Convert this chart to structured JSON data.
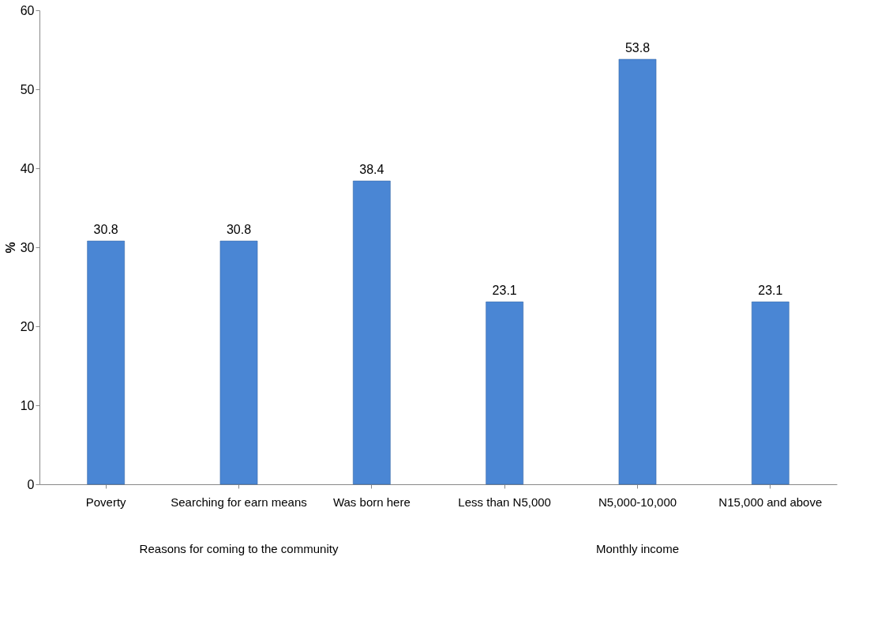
{
  "chart_data": {
    "type": "bar",
    "ylabel": "%",
    "categories": [
      "Poverty",
      "Searching for earn means",
      "Was born here",
      "Less than N5,000",
      "N5,000-10,000",
      "N15,000 and above"
    ],
    "values": [
      30.8,
      30.8,
      38.4,
      23.1,
      53.8,
      23.1
    ],
    "color": "#4a86d4",
    "ylim": [
      0,
      60
    ],
    "yticks": [
      0,
      10,
      20,
      30,
      40,
      50,
      60
    ],
    "grid": false,
    "data_labels": true,
    "annotations": [
      "Reasons for coming to the community",
      "Monthly income"
    ]
  }
}
